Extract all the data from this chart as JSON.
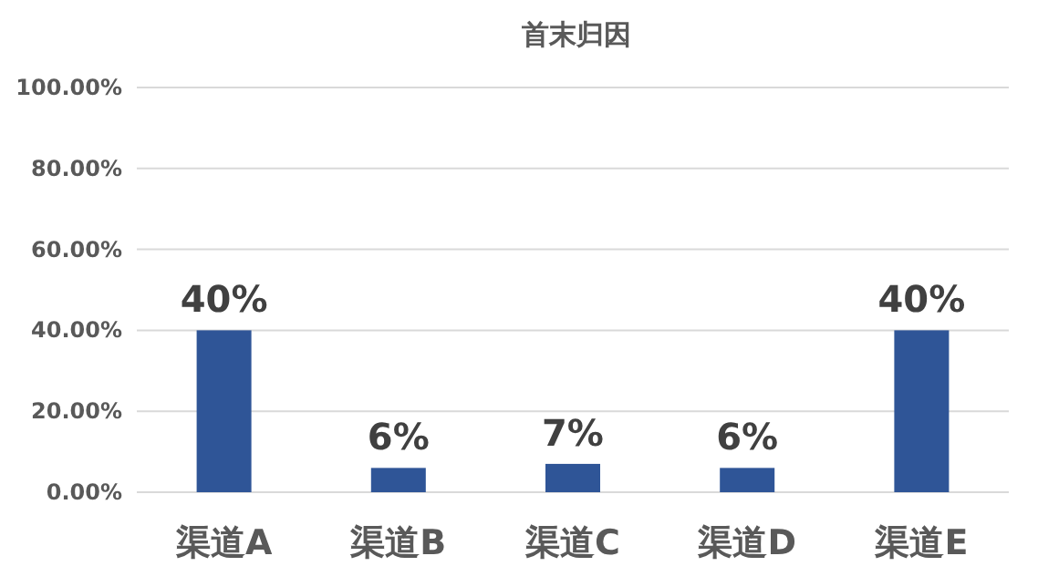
{
  "chart_data": {
    "type": "bar",
    "title": "首末归因",
    "categories": [
      "渠道A",
      "渠道B",
      "渠道C",
      "渠道D",
      "渠道E"
    ],
    "values": [
      40,
      6,
      7,
      6,
      40
    ],
    "value_labels": [
      "40%",
      "6%",
      "7%",
      "6%",
      "40%"
    ],
    "color": "#2f5597",
    "ylim": [
      0,
      100
    ],
    "yticks": [
      {
        "value": 0,
        "label": "0.00%"
      },
      {
        "value": 20,
        "label": "20.00%"
      },
      {
        "value": 40,
        "label": "40.00%"
      },
      {
        "value": 60,
        "label": "60.00%"
      },
      {
        "value": 80,
        "label": "80.00%"
      },
      {
        "value": 100,
        "label": "100.00%"
      }
    ],
    "grid": "y"
  }
}
